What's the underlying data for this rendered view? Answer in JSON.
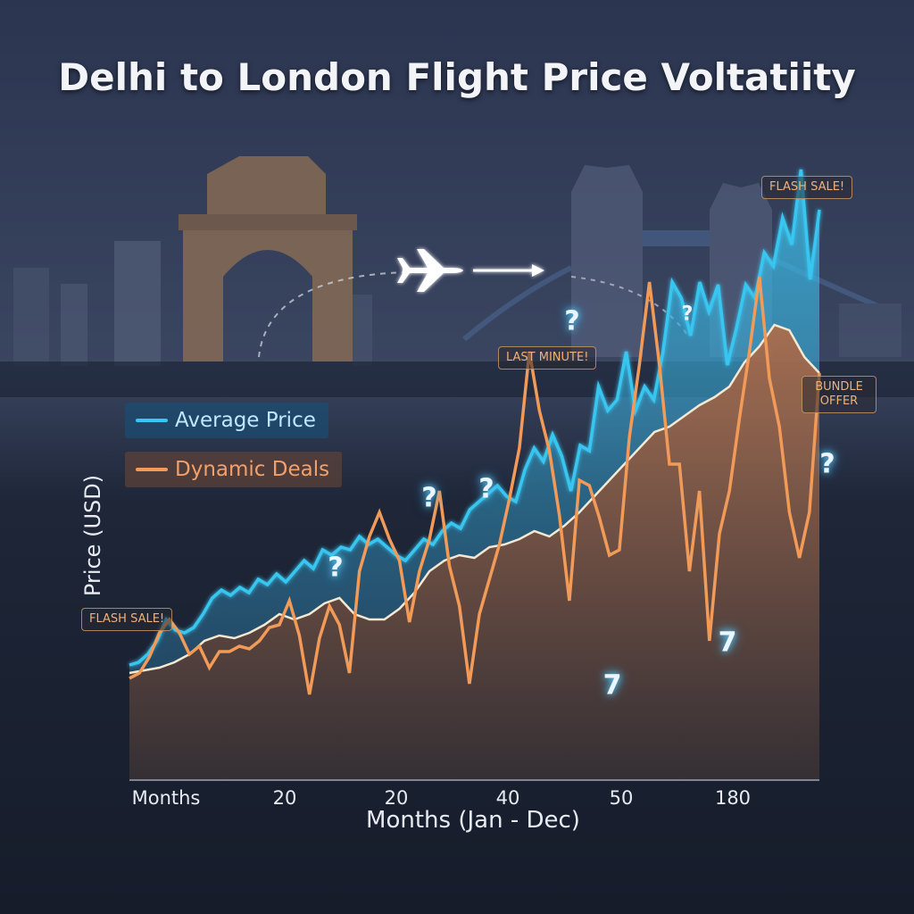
{
  "chart_data": {
    "type": "area",
    "title": "Delhi to London Flight Price Voltatiity",
    "xlabel": "Months (Jan - Dec)",
    "ylabel": "Price (USD)",
    "x_ticks": [
      "Months",
      "20",
      "20",
      "40",
      "50",
      "180"
    ],
    "grid": false,
    "legend_position": "top-left",
    "series": [
      {
        "name": "Average Price",
        "color": "#39c6f0",
        "values": [
          43,
          44,
          47,
          52,
          60,
          56,
          55,
          57,
          62,
          68,
          71,
          69,
          72,
          70,
          75,
          73,
          77,
          74,
          78,
          82,
          79,
          86,
          84,
          87,
          86,
          91,
          88,
          90,
          87,
          84,
          82,
          86,
          90,
          88,
          93,
          96,
          94,
          101,
          104,
          107,
          110,
          106,
          104,
          116,
          124,
          119,
          129,
          121,
          108,
          125,
          123,
          147,
          138,
          142,
          160,
          138,
          147,
          142,
          160,
          186,
          180,
          166,
          186,
          175,
          185,
          155,
          169,
          185,
          180,
          197,
          192,
          210,
          200,
          228,
          187,
          213
        ]
      },
      {
        "name": "Dynamic Deals",
        "color": "#f29a57",
        "values": [
          38,
          40,
          46,
          55,
          60,
          55,
          47,
          50,
          42,
          48,
          48,
          50,
          49,
          52,
          57,
          58,
          67,
          54,
          32,
          53,
          65,
          58,
          40,
          78,
          91,
          100,
          90,
          82,
          59,
          78,
          90,
          108,
          80,
          65,
          36,
          62,
          75,
          88,
          105,
          124,
          160,
          138,
          123,
          99,
          67,
          112,
          110,
          98,
          84,
          86,
          128,
          155,
          186,
          155,
          118,
          118,
          78,
          108,
          52,
          92,
          108,
          135,
          160,
          188,
          150,
          132,
          100,
          83,
          100,
          152
        ]
      },
      {
        "name": "",
        "color": "#f3e8d2",
        "values": [
          40,
          41,
          42,
          44,
          47,
          52,
          54,
          53,
          55,
          58,
          62,
          60,
          62,
          66,
          68,
          62,
          60,
          60,
          64,
          70,
          78,
          82,
          84,
          83,
          87,
          88,
          90,
          93,
          91,
          95,
          100,
          106,
          112,
          118,
          124,
          130,
          132,
          136,
          140,
          143,
          147,
          156,
          162,
          170,
          168,
          158,
          152
        ]
      }
    ],
    "callouts": [
      "FLASH SALE!",
      "LAST MINUTE!",
      "FLASH SALE!",
      "BUNDLE OFFER"
    ],
    "markers": [
      "?",
      "?",
      "?",
      "?",
      "?",
      "?",
      "7",
      "7"
    ]
  }
}
